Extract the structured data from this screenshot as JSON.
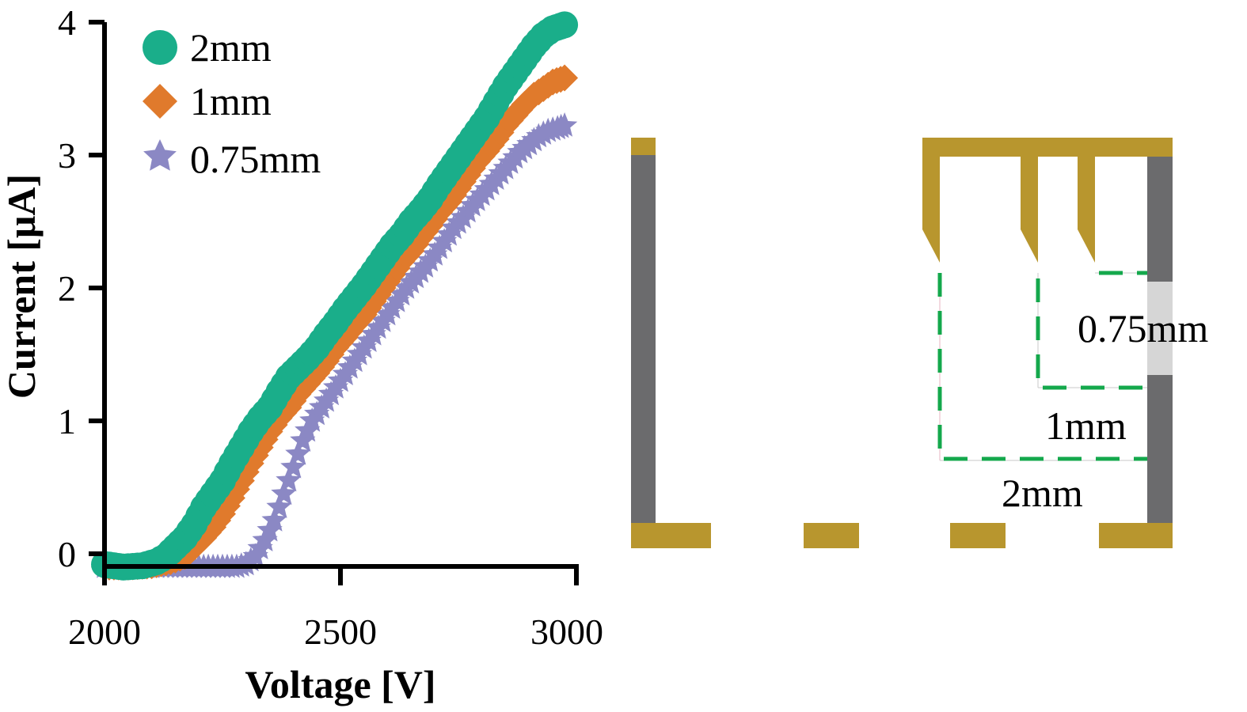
{
  "colors": {
    "s2mm": "#1aae8a",
    "s1mm": "#e07a2c",
    "s075mm": "#8b88c4",
    "electrode_gold": "#b8962e",
    "electrode_gray": "#6b6b6d",
    "gap_light": "#d6d6d6",
    "dash_green": "#14a84c"
  },
  "chart_data": {
    "type": "scatter",
    "title": "",
    "xlabel": "Voltage [V]",
    "ylabel": "Current [μA]",
    "xlim": [
      2000,
      3000
    ],
    "ylim": [
      0,
      4
    ],
    "xticks": [
      "2000",
      "2500",
      "3000"
    ],
    "yticks": [
      "0",
      "1",
      "2",
      "3",
      "4"
    ],
    "legend_position": "top-left",
    "series": [
      {
        "name": "2mm",
        "marker": "circle",
        "color": "#1aae8a",
        "points": [
          [
            2000,
            -0.08
          ],
          [
            2040,
            -0.1
          ],
          [
            2080,
            -0.09
          ],
          [
            2110,
            -0.06
          ],
          [
            2130,
            -0.02
          ],
          [
            2150,
            0.05
          ],
          [
            2170,
            0.12
          ],
          [
            2190,
            0.22
          ],
          [
            2210,
            0.35
          ],
          [
            2230,
            0.45
          ],
          [
            2250,
            0.55
          ],
          [
            2270,
            0.68
          ],
          [
            2290,
            0.8
          ],
          [
            2310,
            0.92
          ],
          [
            2330,
            1.02
          ],
          [
            2350,
            1.1
          ],
          [
            2370,
            1.22
          ],
          [
            2390,
            1.33
          ],
          [
            2410,
            1.4
          ],
          [
            2430,
            1.47
          ],
          [
            2450,
            1.55
          ],
          [
            2470,
            1.65
          ],
          [
            2490,
            1.74
          ],
          [
            2510,
            1.84
          ],
          [
            2530,
            1.93
          ],
          [
            2550,
            2.02
          ],
          [
            2570,
            2.12
          ],
          [
            2590,
            2.22
          ],
          [
            2610,
            2.32
          ],
          [
            2630,
            2.4
          ],
          [
            2650,
            2.5
          ],
          [
            2670,
            2.58
          ],
          [
            2690,
            2.67
          ],
          [
            2710,
            2.78
          ],
          [
            2730,
            2.88
          ],
          [
            2750,
            2.98
          ],
          [
            2770,
            3.08
          ],
          [
            2790,
            3.18
          ],
          [
            2810,
            3.28
          ],
          [
            2830,
            3.4
          ],
          [
            2850,
            3.52
          ],
          [
            2870,
            3.62
          ],
          [
            2890,
            3.72
          ],
          [
            2910,
            3.82
          ],
          [
            2930,
            3.9
          ],
          [
            2950,
            3.95
          ],
          [
            2975,
            3.98
          ]
        ]
      },
      {
        "name": "1mm",
        "marker": "diamond",
        "color": "#e07a2c",
        "points": [
          [
            2000,
            -0.1
          ],
          [
            2050,
            -0.1
          ],
          [
            2100,
            -0.09
          ],
          [
            2140,
            -0.06
          ],
          [
            2170,
            -0.02
          ],
          [
            2190,
            0.05
          ],
          [
            2210,
            0.12
          ],
          [
            2230,
            0.2
          ],
          [
            2250,
            0.3
          ],
          [
            2270,
            0.42
          ],
          [
            2290,
            0.55
          ],
          [
            2310,
            0.68
          ],
          [
            2330,
            0.8
          ],
          [
            2350,
            0.92
          ],
          [
            2370,
            1.02
          ],
          [
            2390,
            1.1
          ],
          [
            2410,
            1.2
          ],
          [
            2430,
            1.28
          ],
          [
            2450,
            1.36
          ],
          [
            2470,
            1.45
          ],
          [
            2490,
            1.55
          ],
          [
            2510,
            1.63
          ],
          [
            2530,
            1.72
          ],
          [
            2550,
            1.8
          ],
          [
            2570,
            1.9
          ],
          [
            2590,
            2.0
          ],
          [
            2610,
            2.1
          ],
          [
            2630,
            2.2
          ],
          [
            2650,
            2.28
          ],
          [
            2670,
            2.38
          ],
          [
            2690,
            2.47
          ],
          [
            2710,
            2.57
          ],
          [
            2730,
            2.65
          ],
          [
            2750,
            2.75
          ],
          [
            2770,
            2.85
          ],
          [
            2790,
            2.95
          ],
          [
            2810,
            3.03
          ],
          [
            2830,
            3.12
          ],
          [
            2850,
            3.22
          ],
          [
            2870,
            3.3
          ],
          [
            2890,
            3.38
          ],
          [
            2910,
            3.45
          ],
          [
            2930,
            3.5
          ],
          [
            2950,
            3.55
          ],
          [
            2975,
            3.58
          ]
        ]
      },
      {
        "name": "0.75mm",
        "marker": "star",
        "color": "#8b88c4",
        "points": [
          [
            2000,
            -0.1
          ],
          [
            2060,
            -0.1
          ],
          [
            2120,
            -0.1
          ],
          [
            2180,
            -0.1
          ],
          [
            2240,
            -0.1
          ],
          [
            2280,
            -0.1
          ],
          [
            2300,
            -0.08
          ],
          [
            2320,
            -0.02
          ],
          [
            2340,
            0.1
          ],
          [
            2360,
            0.25
          ],
          [
            2380,
            0.45
          ],
          [
            2400,
            0.65
          ],
          [
            2420,
            0.85
          ],
          [
            2440,
            1.0
          ],
          [
            2460,
            1.1
          ],
          [
            2480,
            1.2
          ],
          [
            2500,
            1.3
          ],
          [
            2520,
            1.4
          ],
          [
            2540,
            1.5
          ],
          [
            2560,
            1.6
          ],
          [
            2580,
            1.7
          ],
          [
            2600,
            1.8
          ],
          [
            2620,
            1.9
          ],
          [
            2640,
            2.0
          ],
          [
            2660,
            2.08
          ],
          [
            2680,
            2.16
          ],
          [
            2700,
            2.25
          ],
          [
            2720,
            2.35
          ],
          [
            2740,
            2.45
          ],
          [
            2760,
            2.53
          ],
          [
            2780,
            2.62
          ],
          [
            2800,
            2.7
          ],
          [
            2820,
            2.78
          ],
          [
            2840,
            2.86
          ],
          [
            2860,
            2.94
          ],
          [
            2880,
            3.02
          ],
          [
            2900,
            3.08
          ],
          [
            2920,
            3.14
          ],
          [
            2940,
            3.18
          ],
          [
            2960,
            3.2
          ],
          [
            2975,
            3.22
          ]
        ]
      }
    ]
  },
  "diagram": {
    "gap_labels": [
      "0.75mm",
      "1mm",
      "2mm"
    ]
  }
}
